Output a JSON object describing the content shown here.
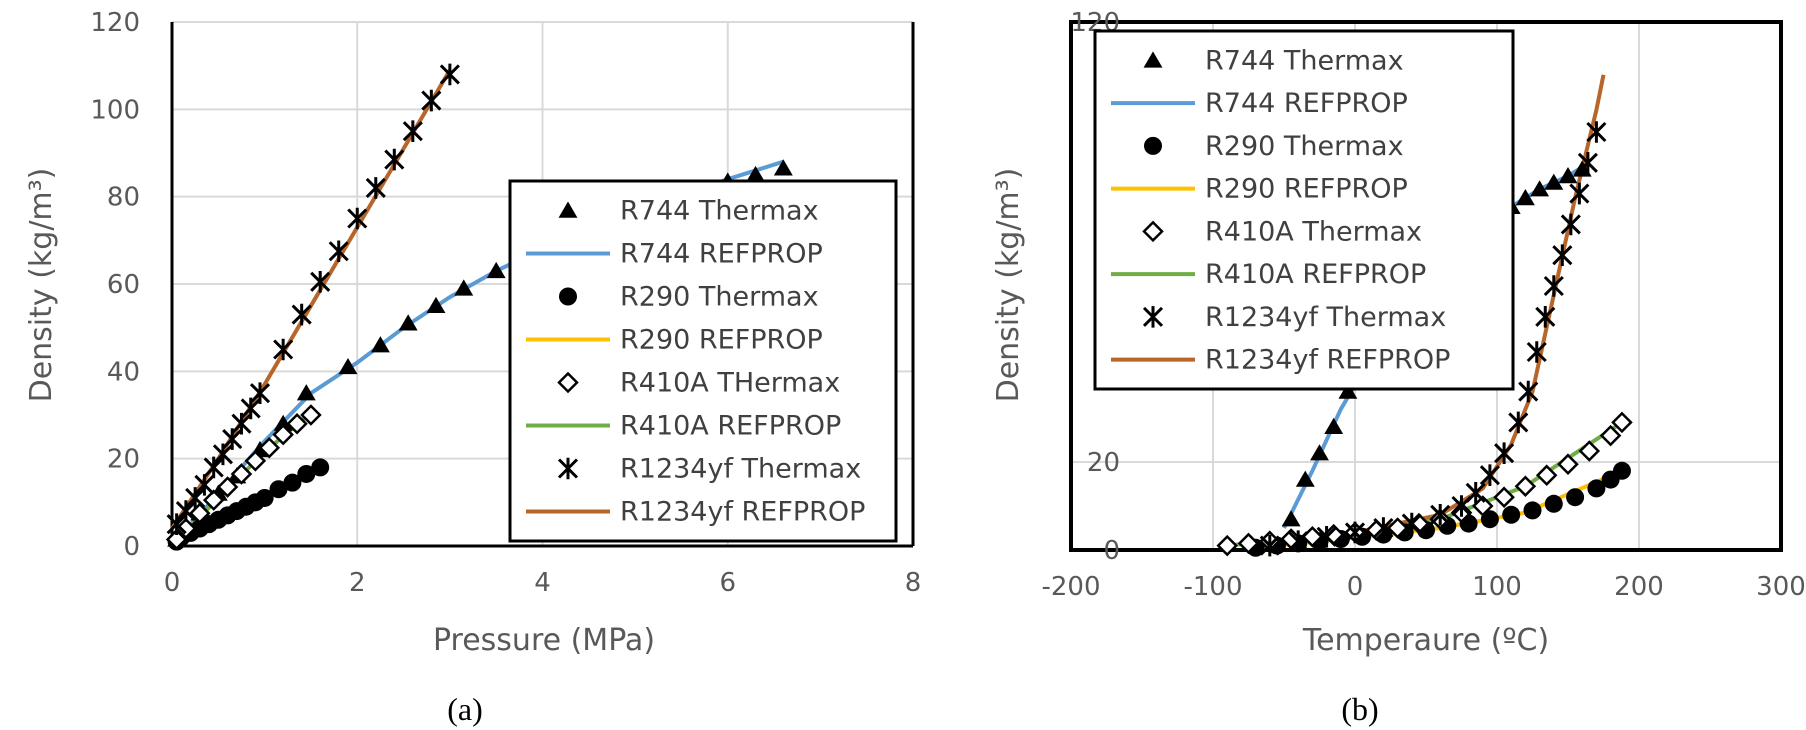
{
  "colors": {
    "R744_REFPROP": "#5b9bd5",
    "R290_REFPROP": "#ffc000",
    "R410A_REFPROP": "#70ad47",
    "R1234yf_REFPROP": "#b8652a",
    "marker": "#000000",
    "grid": "#d9d9d9",
    "text": "#595959"
  },
  "chart_data": [
    {
      "type": "line",
      "caption": "(a)",
      "xlabel": "Pressure (MPa)",
      "ylabel": "Density (kg/m³)",
      "xlim": [
        0,
        8
      ],
      "ylim": [
        0,
        120
      ],
      "xticks": [
        0,
        2,
        4,
        6,
        8
      ],
      "yticks": [
        0,
        20,
        40,
        60,
        80,
        100,
        120
      ],
      "grid": "major gridlines",
      "legend_placement": "right",
      "series": [
        {
          "name": "R744 Thermax",
          "marker": "triangle",
          "x": [
            0.05,
            0.15,
            0.3,
            0.5,
            0.7,
            0.95,
            1.2,
            1.45,
            1.9,
            2.25,
            2.55,
            2.85,
            3.15,
            3.5,
            3.85,
            4.2,
            4.6,
            4.95,
            5.3,
            5.7,
            6.0,
            6.3,
            6.6
          ],
          "y": [
            1.5,
            4,
            7.5,
            12,
            16,
            22,
            28,
            35,
            41,
            46,
            51,
            55,
            59,
            63,
            66.5,
            69.5,
            72.5,
            75.5,
            78.5,
            81.5,
            83.5,
            85,
            86.5
          ]
        },
        {
          "name": "R744 REFPROP",
          "marker": "line",
          "x": [
            0,
            0.5,
            1,
            1.5,
            2,
            2.5,
            3,
            3.5,
            4,
            4.5,
            5,
            5.5,
            6,
            6.6
          ],
          "y": [
            0,
            12,
            24,
            35,
            42,
            50,
            57,
            63,
            68,
            72.5,
            77,
            80.5,
            84,
            88
          ]
        },
        {
          "name": "R290 Thermax",
          "marker": "circle",
          "x": [
            0.05,
            0.1,
            0.2,
            0.3,
            0.4,
            0.5,
            0.6,
            0.7,
            0.8,
            0.9,
            1.0,
            1.15,
            1.3,
            1.45,
            1.6
          ],
          "y": [
            1,
            2,
            3,
            4,
            5,
            6,
            7,
            8,
            9,
            10,
            11,
            13,
            14.5,
            16.5,
            18
          ]
        },
        {
          "name": "R290 REFPROP",
          "marker": "line",
          "x": [
            0,
            0.4,
            0.8,
            1.2,
            1.6
          ],
          "y": [
            0,
            5,
            9.5,
            14,
            18
          ]
        },
        {
          "name": "R410A THermax",
          "marker": "diamond",
          "x": [
            0.05,
            0.15,
            0.3,
            0.45,
            0.6,
            0.75,
            0.9,
            1.05,
            1.2,
            1.35,
            1.5
          ],
          "y": [
            1.5,
            4,
            7.5,
            10.5,
            13.5,
            16.5,
            19.5,
            22.5,
            25.5,
            28,
            30
          ]
        },
        {
          "name": "R410A REFPROP",
          "marker": "line",
          "x": [
            0,
            0.5,
            1,
            1.5
          ],
          "y": [
            0,
            11,
            21.5,
            30.5
          ]
        },
        {
          "name": "R1234yf Thermax",
          "marker": "asterisk",
          "x": [
            0.05,
            0.15,
            0.25,
            0.35,
            0.45,
            0.55,
            0.65,
            0.75,
            0.85,
            0.95,
            1.2,
            1.4,
            1.6,
            1.8,
            2.0,
            2.2,
            2.4,
            2.6,
            2.8,
            3.0
          ],
          "y": [
            5,
            8,
            11,
            14,
            18,
            21,
            24.5,
            28,
            31.5,
            35,
            45,
            53,
            60.5,
            67.5,
            75,
            82,
            88.5,
            95,
            102,
            108
          ]
        },
        {
          "name": "R1234yf REFPROP",
          "marker": "line",
          "x": [
            0,
            0.5,
            1,
            1.5,
            2,
            2.5,
            3
          ],
          "y": [
            4,
            20,
            37,
            55,
            73,
            91,
            109
          ]
        }
      ]
    },
    {
      "type": "line",
      "caption": "(b)",
      "xlabel": "Temperaure (ºC)",
      "ylabel": "Density (kg/m³)",
      "xlim": [
        -200,
        300
      ],
      "ylim": [
        0,
        120
      ],
      "xticks": [
        -200,
        -100,
        0,
        100,
        200,
        300
      ],
      "yticks": [
        0,
        20,
        120
      ],
      "grid": "major gridlines",
      "legend_placement": "top-left",
      "series": [
        {
          "name": "R744 Thermax",
          "marker": "triangle",
          "x": [
            -45,
            -35,
            -25,
            -15,
            -5,
            5,
            15,
            25,
            35,
            45,
            55,
            65,
            80,
            95,
            110,
            120,
            130,
            140,
            150,
            160
          ],
          "y": [
            7,
            16,
            22,
            28,
            36,
            40,
            46,
            51,
            55,
            59,
            63,
            66,
            70,
            74,
            78,
            80,
            82,
            83.5,
            85,
            86.5
          ]
        },
        {
          "name": "R744 REFPROP",
          "marker": "line",
          "x": [
            -50,
            -30,
            -10,
            10,
            30,
            50,
            70,
            90,
            110,
            130,
            150,
            165
          ],
          "y": [
            5,
            18,
            32,
            43,
            52,
            60,
            67,
            73,
            78,
            82,
            85,
            88
          ]
        },
        {
          "name": "R290 Thermax",
          "marker": "circle",
          "x": [
            -70,
            -55,
            -40,
            -25,
            -10,
            5,
            20,
            35,
            50,
            65,
            80,
            95,
            110,
            125,
            140,
            155,
            170,
            180,
            188
          ],
          "y": [
            0.5,
            1,
            1.5,
            2,
            2.5,
            3,
            3.5,
            4,
            4.5,
            5.5,
            6,
            7,
            8,
            9,
            10.5,
            12,
            14,
            16,
            18
          ]
        },
        {
          "name": "R290 REFPROP",
          "marker": "line",
          "x": [
            -70,
            0,
            60,
            120,
            188
          ],
          "y": [
            0.5,
            2.8,
            5,
            8.5,
            18
          ]
        },
        {
          "name": "R410A Thermax",
          "marker": "diamond",
          "x": [
            -90,
            -75,
            -60,
            -45,
            -30,
            -15,
            0,
            15,
            30,
            45,
            60,
            75,
            90,
            105,
            120,
            135,
            150,
            165,
            180,
            188
          ],
          "y": [
            1,
            1.5,
            2,
            2.5,
            3,
            3.5,
            4,
            4.5,
            5,
            6,
            7,
            8.5,
            10,
            12,
            14.5,
            17,
            19.5,
            22.5,
            26,
            29
          ]
        },
        {
          "name": "R410A REFPROP",
          "marker": "line",
          "x": [
            -90,
            0,
            60,
            120,
            188
          ],
          "y": [
            1,
            4,
            7,
            14.5,
            29
          ]
        },
        {
          "name": "R1234yf Thermax",
          "marker": "asterisk",
          "x": [
            -60,
            -40,
            -20,
            0,
            20,
            40,
            60,
            75,
            85,
            95,
            105,
            115,
            122,
            128,
            134,
            140,
            146,
            152,
            158,
            164,
            170
          ],
          "y": [
            1,
            2,
            3,
            4,
            5,
            6,
            8,
            10,
            13,
            17,
            22,
            29,
            36,
            45,
            53,
            60,
            67,
            74,
            81,
            88,
            95
          ]
        },
        {
          "name": "R1234yf REFPROP",
          "marker": "line",
          "x": [
            -60,
            0,
            60,
            90,
            110,
            125,
            140,
            155,
            170,
            175
          ],
          "y": [
            1,
            4,
            8,
            14,
            24,
            36,
            58,
            80,
            100,
            108
          ]
        }
      ]
    }
  ]
}
